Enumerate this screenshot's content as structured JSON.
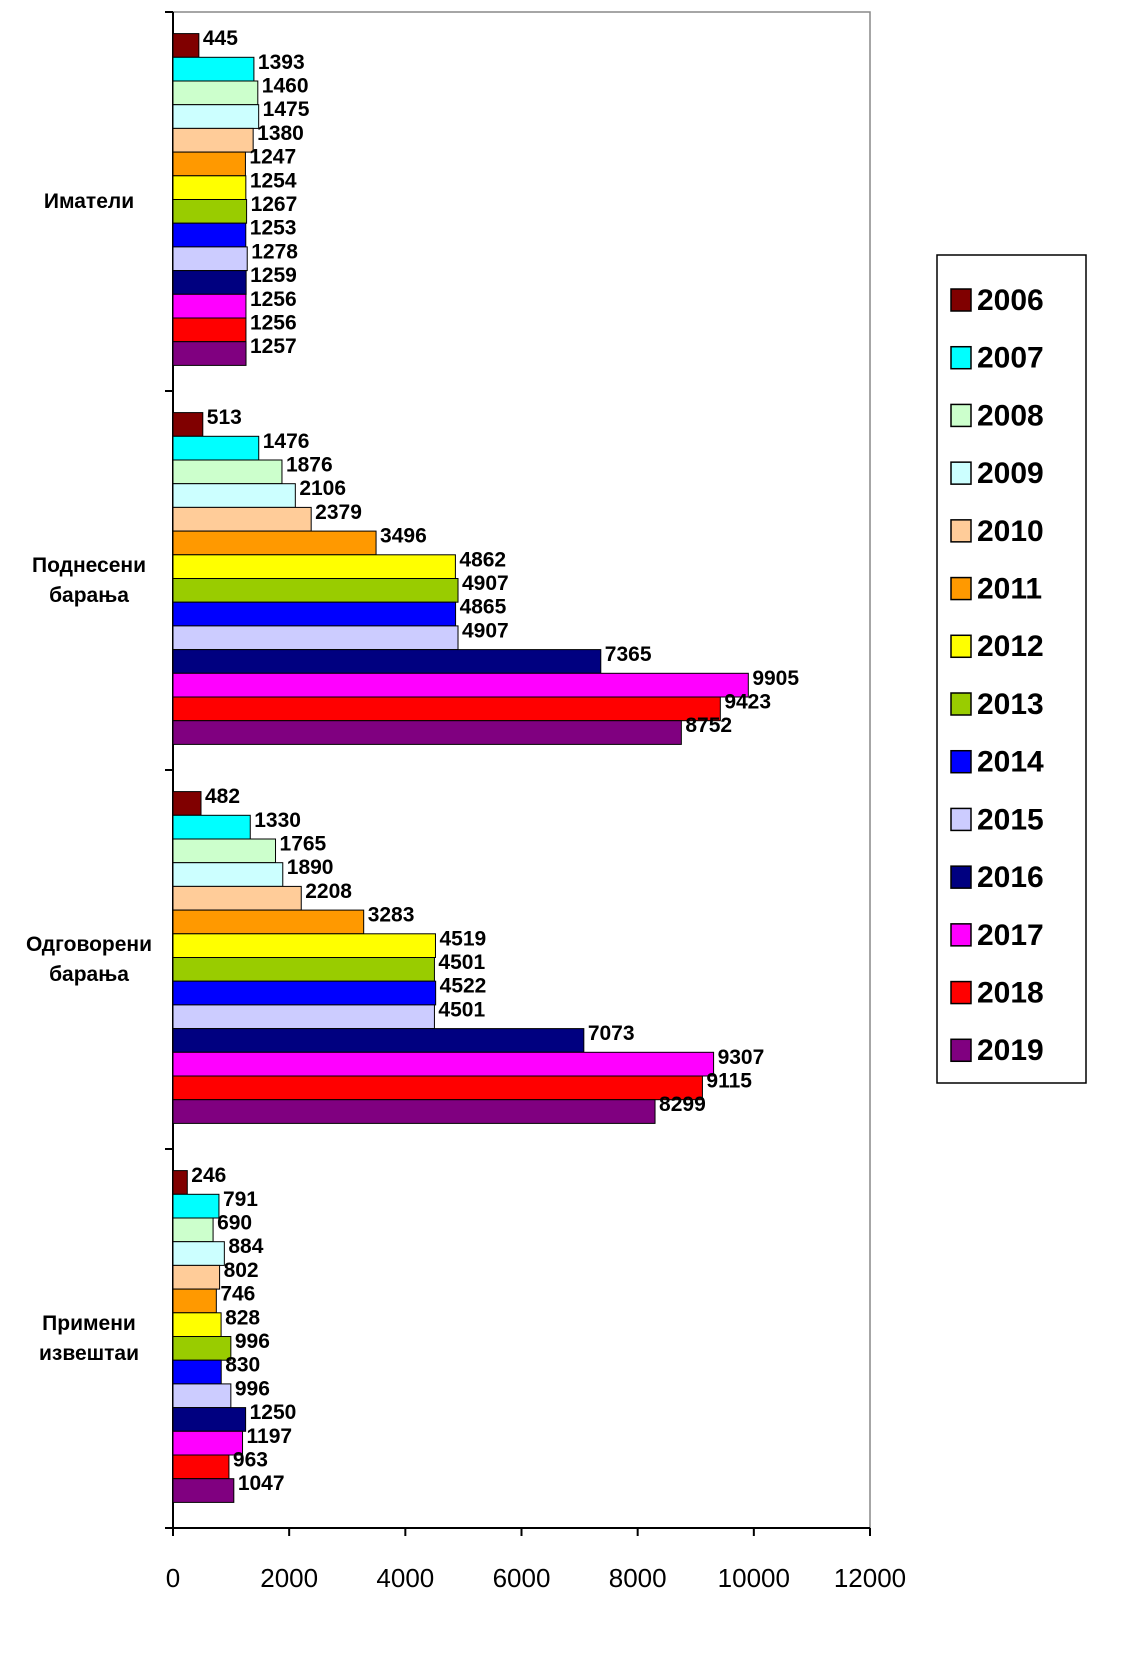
{
  "chart_data": {
    "type": "hbar",
    "categories": [
      "Иматели",
      "Поднесени барања",
      "Одговорени барања",
      "Примени извештаи"
    ],
    "series": [
      {
        "name": "2006",
        "color": "#800000",
        "values": [
          445,
          513,
          482,
          246
        ]
      },
      {
        "name": "2007",
        "color": "#00ffff",
        "values": [
          1393,
          1476,
          1330,
          791
        ]
      },
      {
        "name": "2008",
        "color": "#ccffcc",
        "values": [
          1460,
          1876,
          1765,
          690
        ]
      },
      {
        "name": "2009",
        "color": "#ccffff",
        "values": [
          1475,
          2106,
          1890,
          884
        ]
      },
      {
        "name": "2010",
        "color": "#ffcc99",
        "values": [
          1380,
          2379,
          2208,
          802
        ]
      },
      {
        "name": "2011",
        "color": "#ff9900",
        "values": [
          1247,
          3496,
          3283,
          746
        ]
      },
      {
        "name": "2012",
        "color": "#ffff00",
        "values": [
          1254,
          4862,
          4519,
          828
        ]
      },
      {
        "name": "2013",
        "color": "#99cc00",
        "values": [
          1267,
          4907,
          4501,
          996
        ]
      },
      {
        "name": "2014",
        "color": "#0000ff",
        "values": [
          1253,
          4865,
          4522,
          830
        ]
      },
      {
        "name": "2015",
        "color": "#ccccff",
        "values": [
          1278,
          4907,
          4501,
          996
        ]
      },
      {
        "name": "2016",
        "color": "#000080",
        "values": [
          1259,
          7365,
          7073,
          1250
        ]
      },
      {
        "name": "2017",
        "color": "#ff00ff",
        "values": [
          1256,
          9905,
          9307,
          1197
        ]
      },
      {
        "name": "2018",
        "color": "#ff0000",
        "values": [
          1256,
          9423,
          9115,
          963
        ]
      },
      {
        "name": "2019",
        "color": "#800080",
        "values": [
          1257,
          8752,
          8299,
          1047
        ]
      }
    ],
    "xlim": [
      0,
      12000
    ],
    "xticks": [
      0,
      2000,
      4000,
      6000,
      8000,
      10000,
      12000
    ],
    "legend": "right"
  }
}
